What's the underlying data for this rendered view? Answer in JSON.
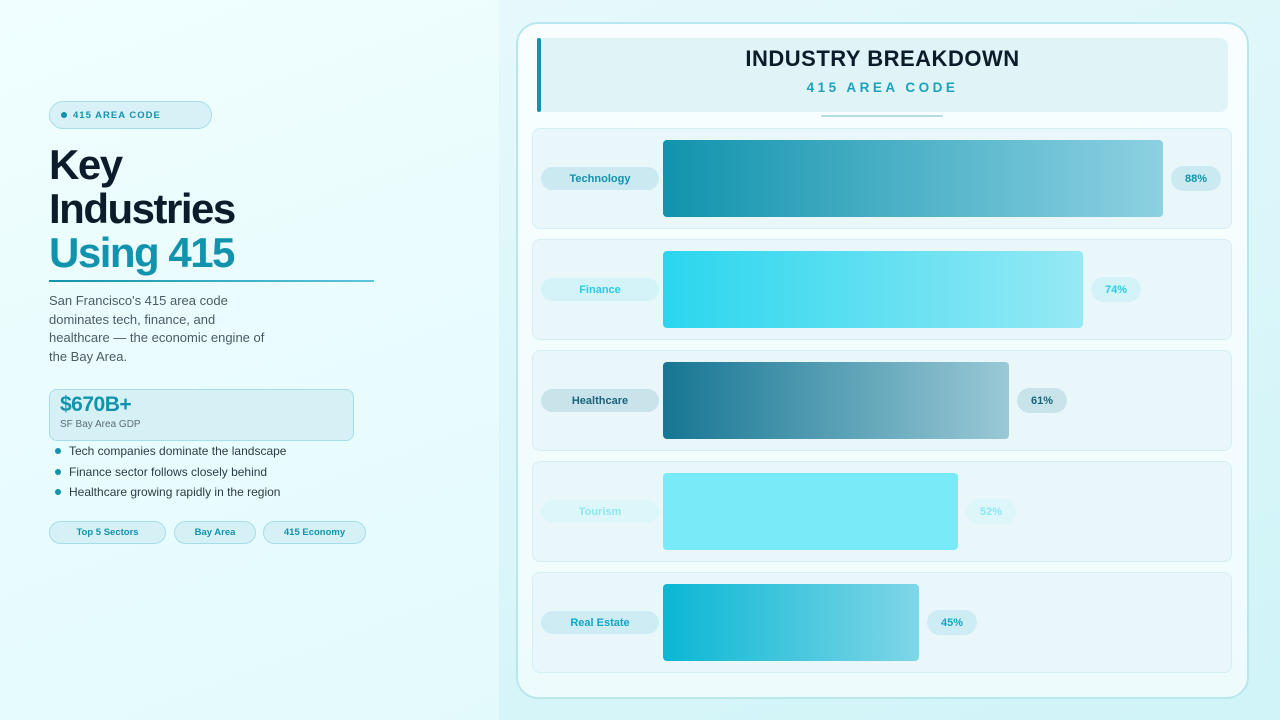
{
  "left": {
    "badge": "415 AREA CODE",
    "title_line1": "Key",
    "title_line2": "Industries",
    "title_accent": "Using 415",
    "description": "San Francisco's 415 area code dominates tech, finance, and healthcare — the economic engine of the Bay Area.",
    "stat": {
      "value": "$670B+",
      "label": "SF Bay Area GDP"
    },
    "bullets": [
      "Tech companies dominate the landscape",
      "Finance sector follows closely behind",
      "Healthcare growing rapidly in the region"
    ],
    "tags": [
      "Top 5 Sectors",
      "Bay Area",
      "415 Economy"
    ]
  },
  "chart_data": {
    "type": "bar",
    "orientation": "horizontal",
    "title": "INDUSTRY BREAKDOWN",
    "subtitle": "415 AREA CODE",
    "categories": [
      "Technology",
      "Finance",
      "Healthcare",
      "Tourism",
      "Real Estate"
    ],
    "values": [
      88,
      74,
      61,
      52,
      45
    ],
    "value_labels": [
      "88%",
      "74%",
      "61%",
      "52%",
      "45%"
    ],
    "xlim": [
      0,
      100
    ],
    "grid": false,
    "legend": "none",
    "colors": [
      {
        "from": "#1193ad",
        "to": "#8dd1e2",
        "label": "#1192ad",
        "pill": "#cbe9f0"
      },
      {
        "from": "#2ad6ee",
        "to": "#96e9f5",
        "label": "#2dc9e6",
        "pill": "#d3f3f8"
      },
      {
        "from": "#167693",
        "to": "#9ac9d6",
        "label": "#17647c",
        "pill": "#c9e3ea"
      },
      {
        "from": "#79eaf8",
        "to": "#79eaf8",
        "label": "#8ce7f3",
        "pill": "#dcf6fa"
      },
      {
        "from": "#0ab7d4",
        "to": "#7fd6e7",
        "label": "#14a6c3",
        "pill": "#cdecf3"
      }
    ]
  }
}
